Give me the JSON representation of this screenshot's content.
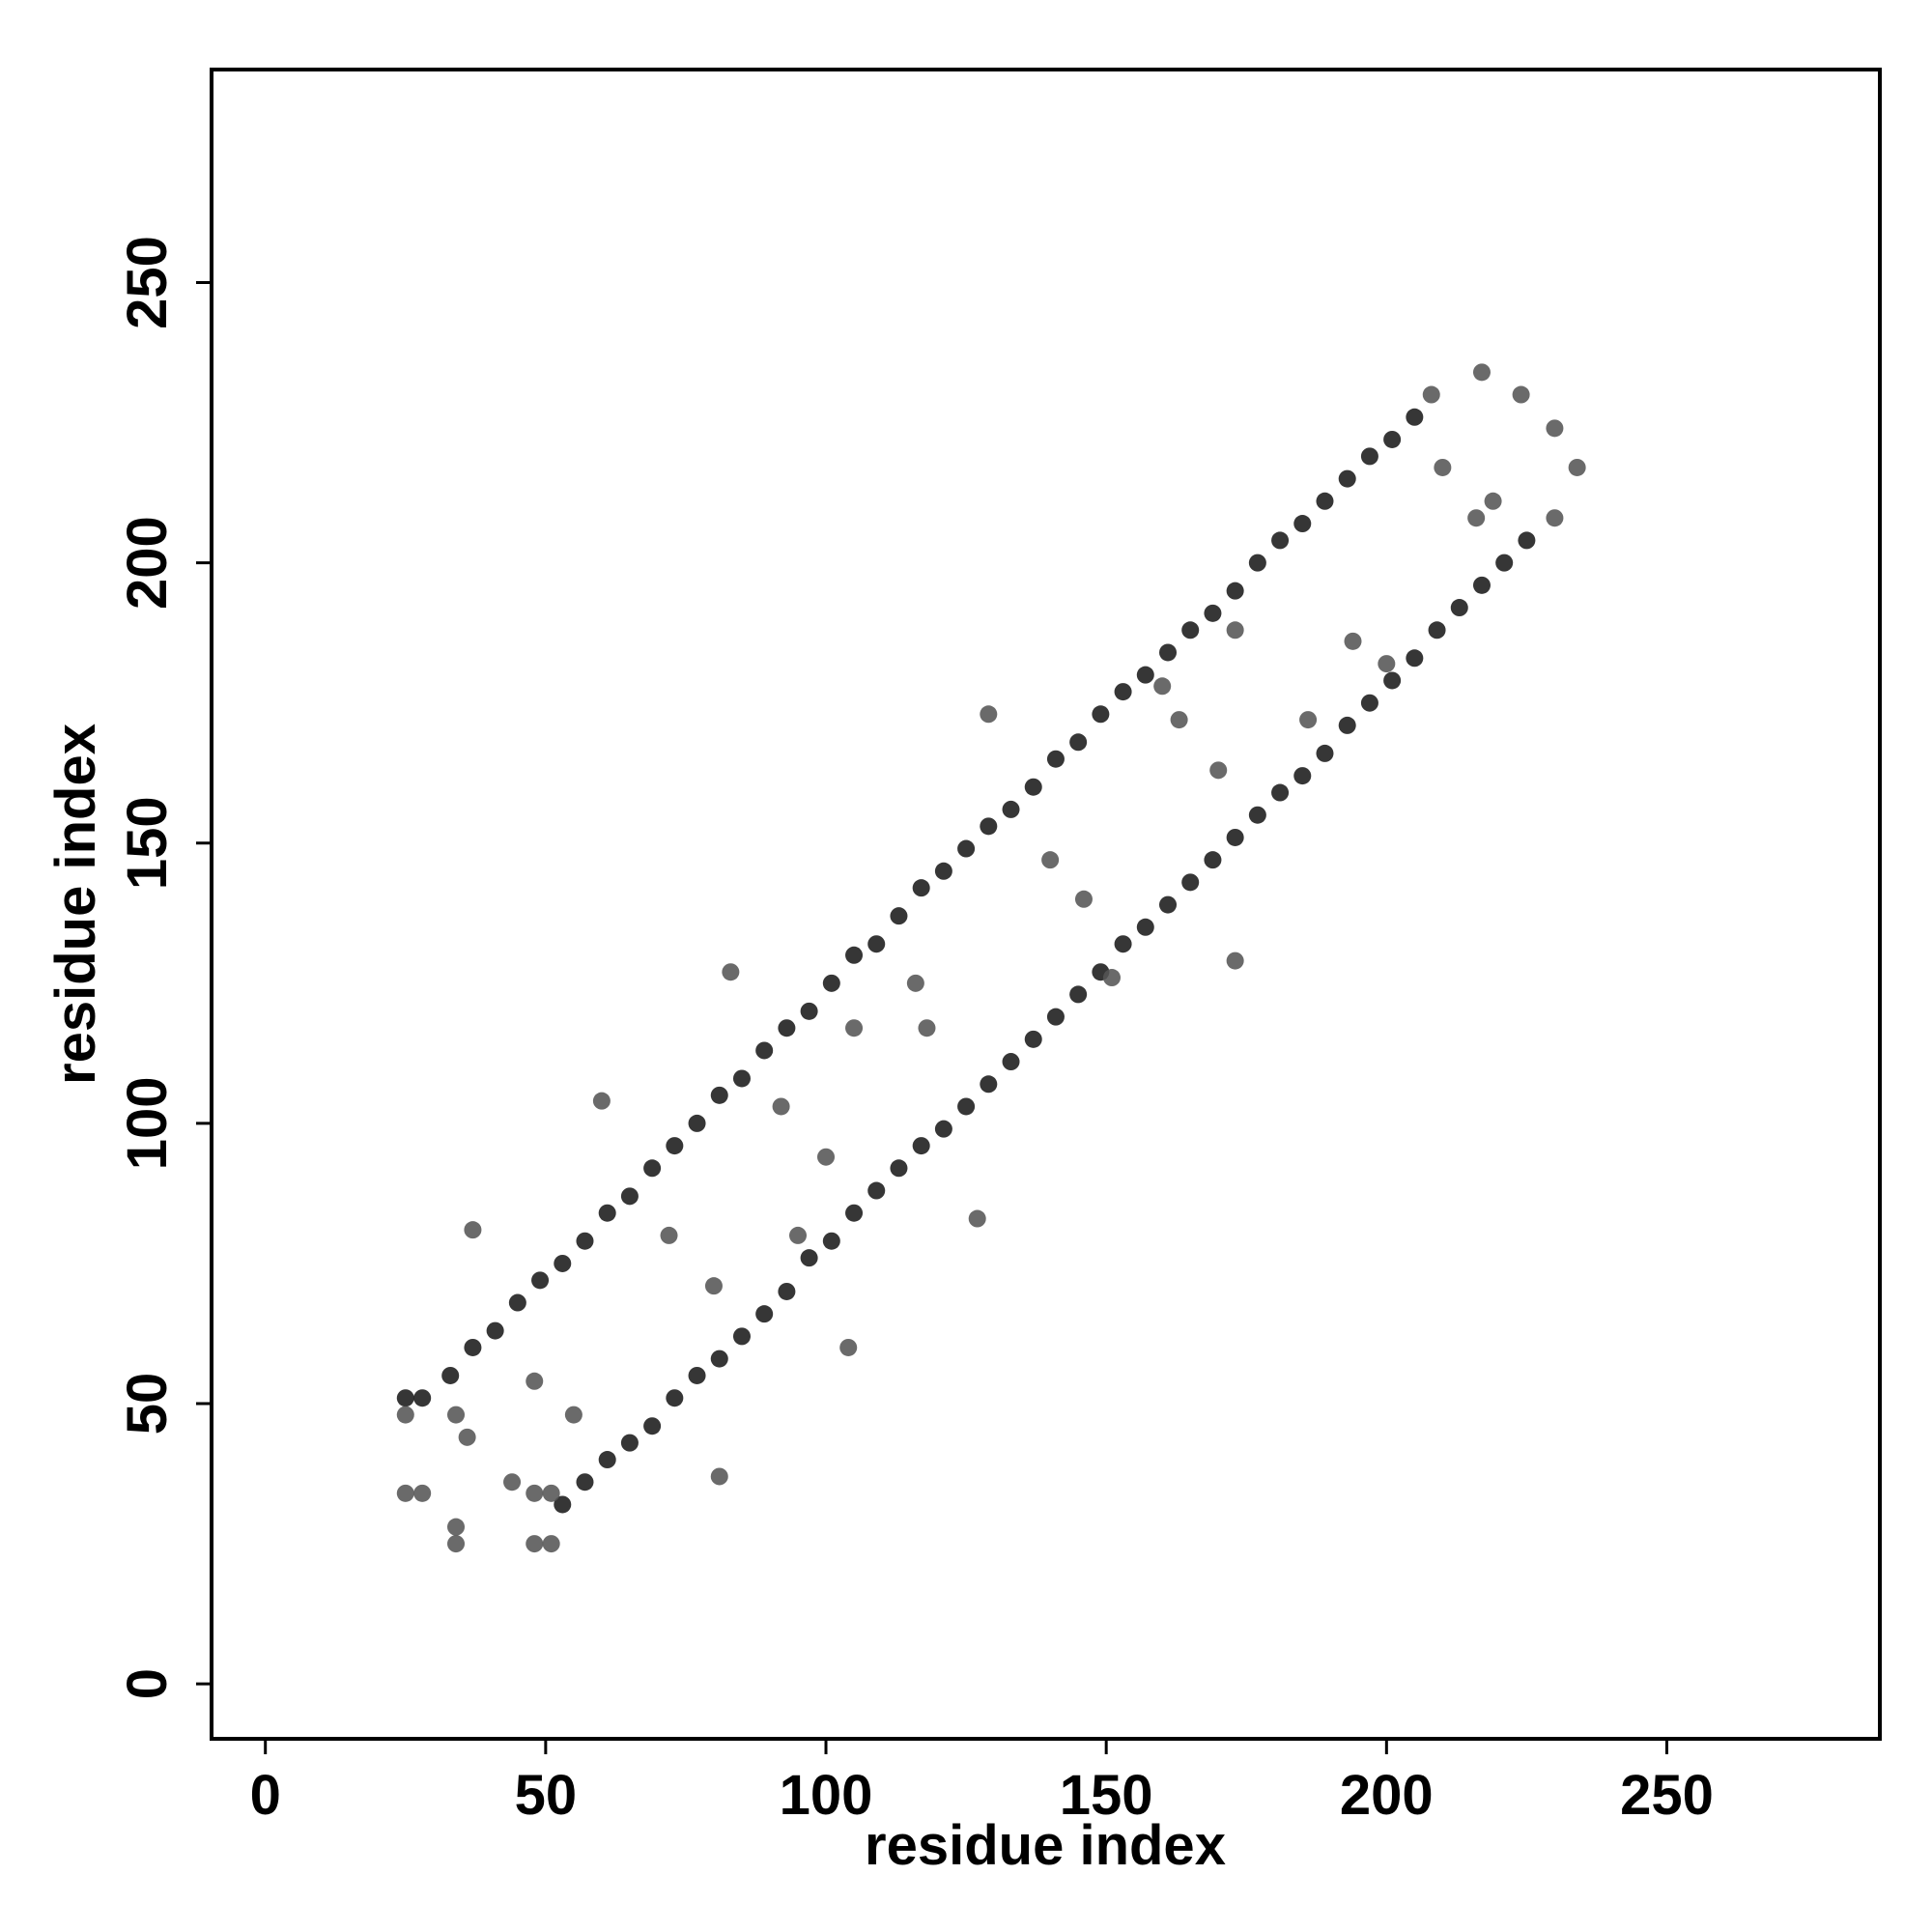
{
  "chart_data": {
    "type": "scatter",
    "xlabel": "residue index",
    "ylabel": "residue index",
    "xlim": [
      -9.6,
      288
    ],
    "ylim": [
      -9.8,
      288
    ],
    "xticks": [
      0,
      50,
      100,
      150,
      200,
      250
    ],
    "yticks": [
      0,
      50,
      100,
      150,
      200,
      250
    ],
    "grid": false,
    "series": [
      {
        "color": "#1a1a1a",
        "x": [
          25,
          28,
          33,
          37,
          41,
          45,
          49,
          53,
          57,
          61,
          65,
          69,
          73,
          77,
          81,
          85,
          89,
          93,
          97,
          101,
          105,
          109,
          113,
          117,
          121,
          125,
          129,
          133,
          137,
          141,
          145,
          149,
          153,
          157,
          161,
          165,
          169,
          173,
          177,
          181,
          185,
          189,
          193,
          197,
          201,
          205,
          53,
          57,
          61,
          65,
          69,
          73,
          77,
          81,
          85,
          89,
          93,
          97,
          101,
          105,
          109,
          113,
          117,
          121,
          125,
          129,
          133,
          137,
          141,
          145,
          149,
          153,
          157,
          161,
          165,
          169,
          173,
          177,
          181,
          185,
          189,
          193,
          197,
          201,
          205,
          209,
          213,
          217,
          221,
          225
        ],
        "values": [
          51,
          51,
          55,
          60,
          63,
          68,
          72,
          75,
          79,
          84,
          87,
          92,
          96,
          100,
          105,
          108,
          113,
          117,
          120,
          125,
          130,
          132,
          137,
          142,
          145,
          149,
          153,
          156,
          160,
          165,
          168,
          173,
          177,
          180,
          184,
          188,
          191,
          195,
          200,
          204,
          207,
          211,
          215,
          219,
          222,
          226,
          32,
          36,
          40,
          43,
          46,
          51,
          55,
          58,
          62,
          66,
          70,
          76,
          79,
          84,
          88,
          92,
          96,
          99,
          103,
          107,
          111,
          115,
          119,
          123,
          127,
          132,
          135,
          139,
          143,
          147,
          151,
          155,
          159,
          162,
          166,
          171,
          175,
          179,
          183,
          188,
          192,
          196,
          200,
          204
        ]
      },
      {
        "color": "#555555",
        "x": [
          25,
          25,
          28,
          34,
          34,
          34,
          36,
          37,
          44,
          48,
          48,
          48,
          51,
          51,
          55,
          60,
          72,
          80,
          81,
          83,
          92,
          95,
          100,
          104,
          105,
          116,
          118,
          127,
          129,
          140,
          146,
          151,
          163,
          170,
          173,
          186,
          194,
          200,
          208,
          210,
          217,
          216,
          224,
          230,
          234,
          230,
          219,
          173,
          160
        ],
        "values": [
          48,
          34,
          34,
          28,
          25,
          48,
          44,
          81,
          36,
          54,
          25,
          34,
          25,
          34,
          48,
          104,
          80,
          71,
          37,
          127,
          103,
          80,
          94,
          60,
          117,
          125,
          117,
          83,
          173,
          147,
          140,
          126,
          172,
          163,
          129,
          172,
          186,
          182,
          230,
          217,
          234,
          208,
          230,
          224,
          217,
          208,
          211,
          188,
          178
        ]
      }
    ]
  }
}
